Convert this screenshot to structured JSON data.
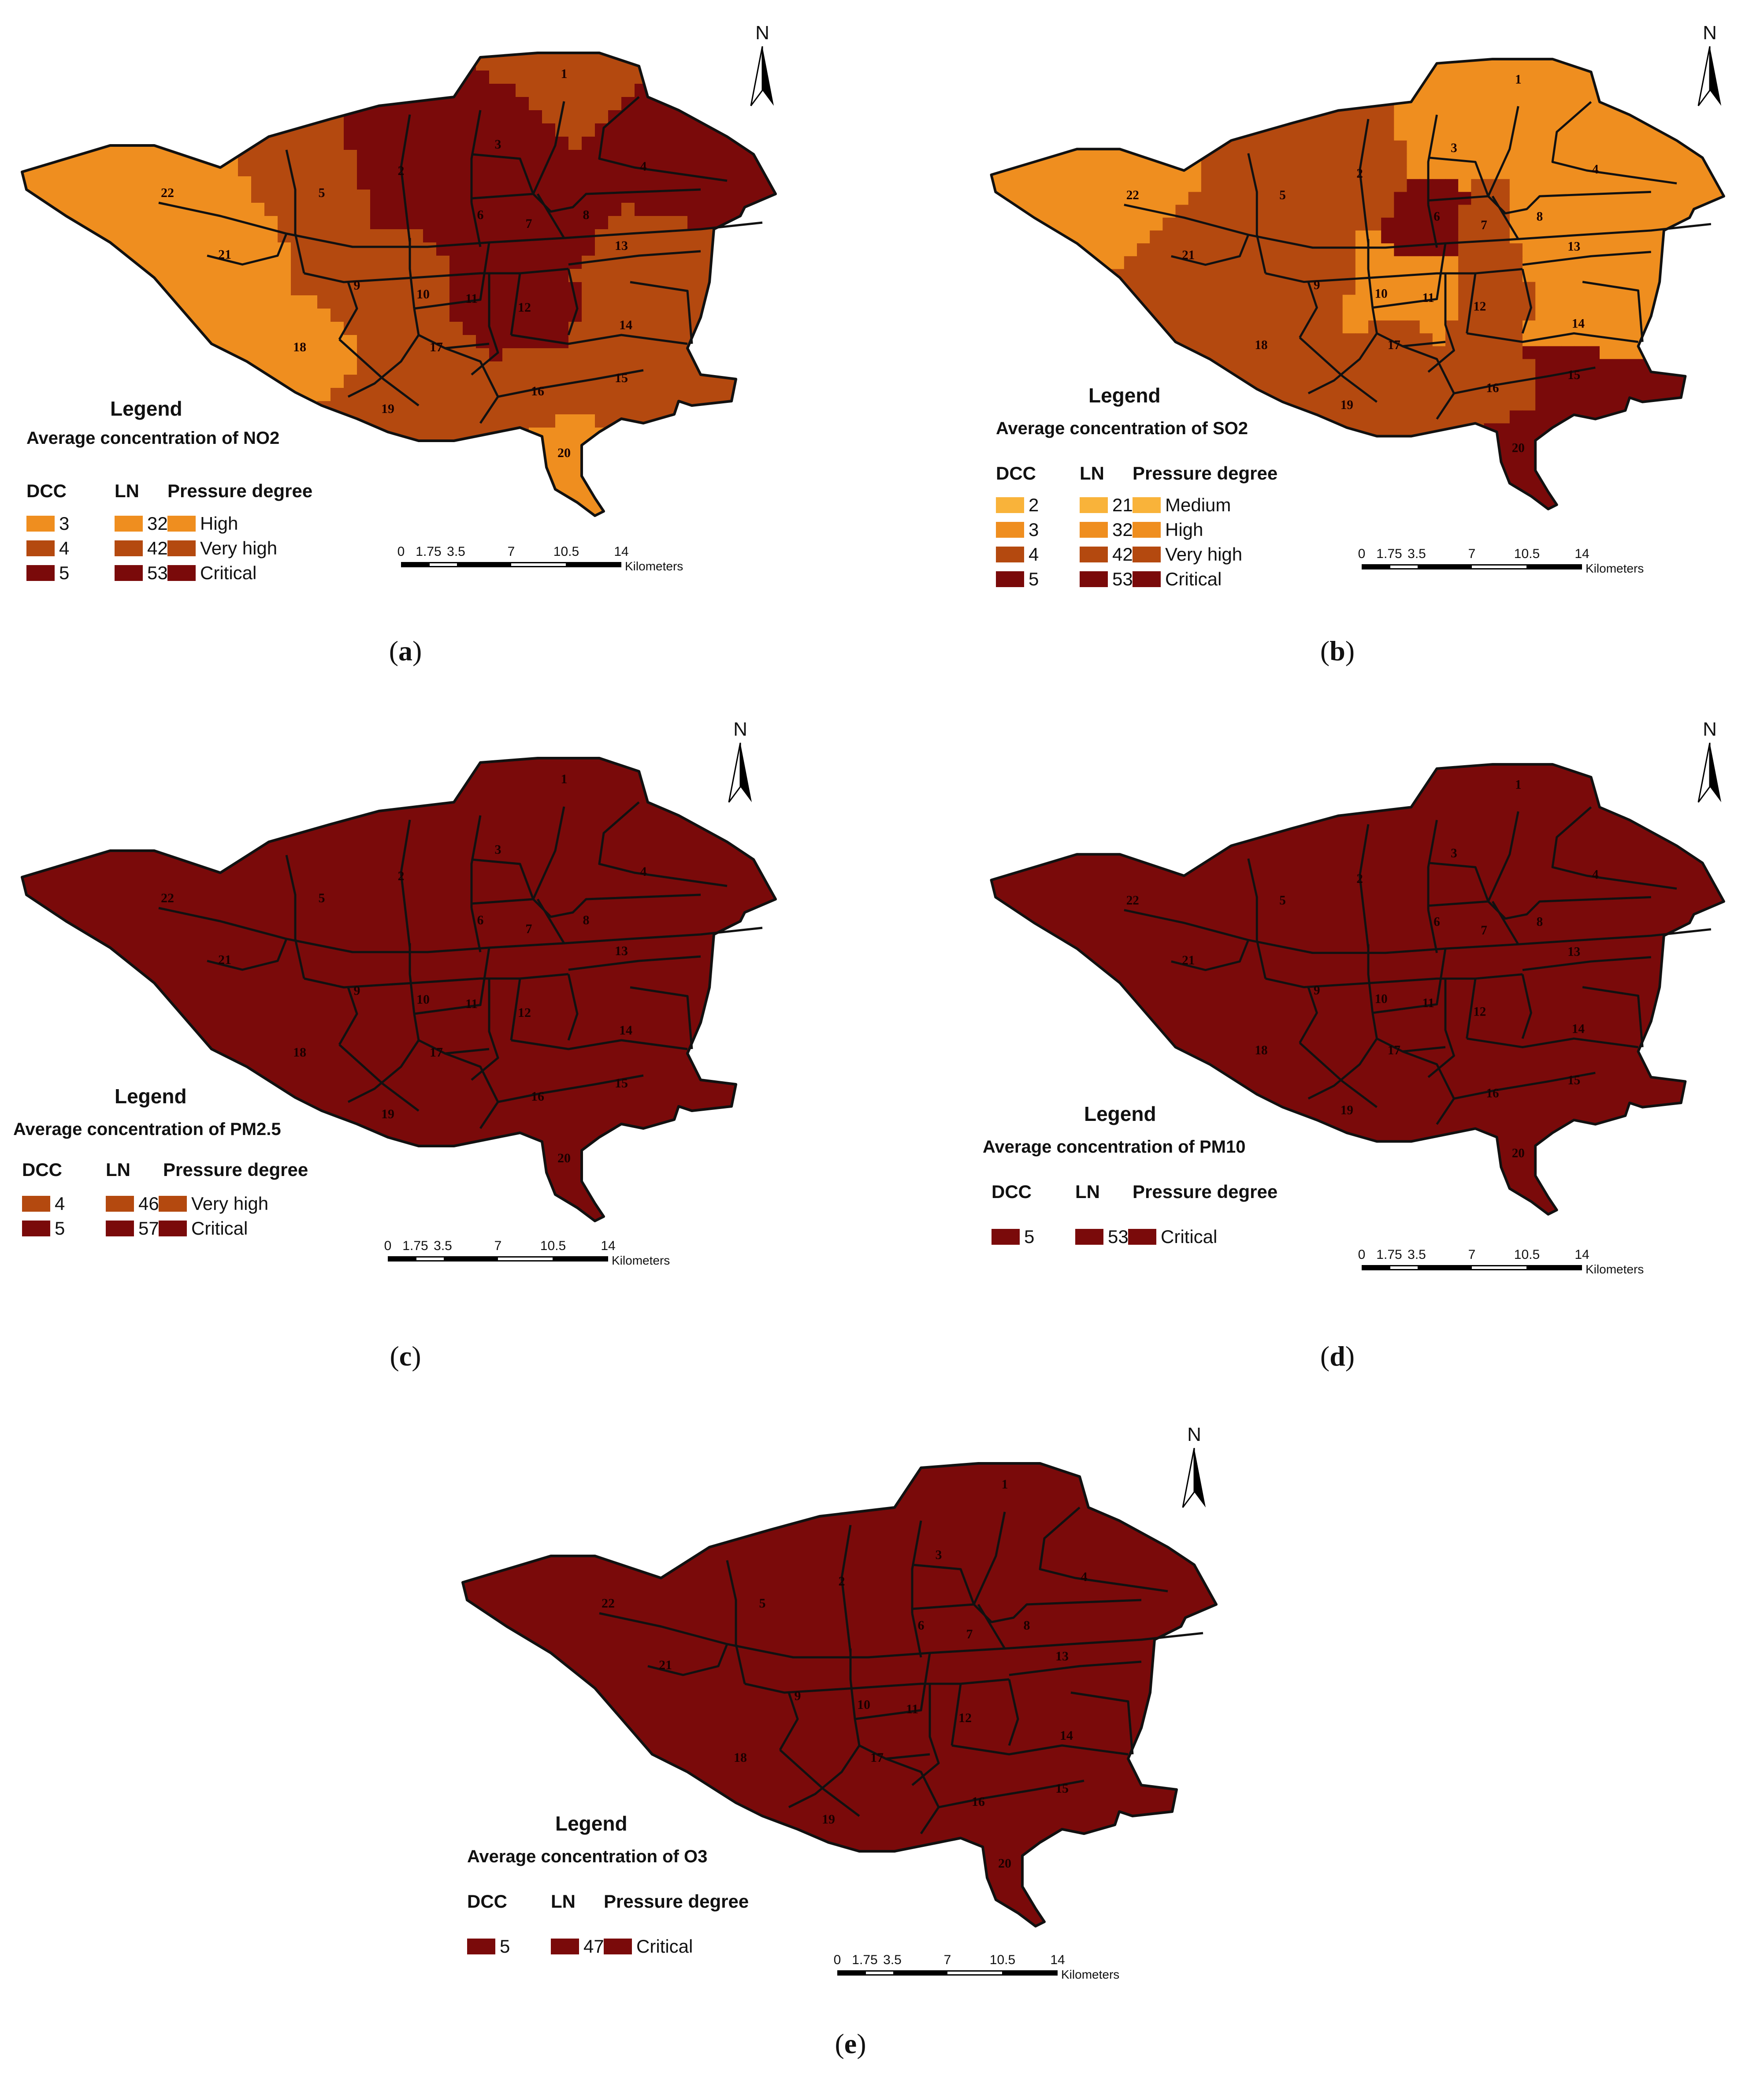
{
  "colors": {
    "medium": "#f9b33a",
    "high": "#ef8e1f",
    "very_high": "#b4490f",
    "critical": "#7a0a0a",
    "outline": "#111111"
  },
  "districts": [
    "1",
    "2",
    "3",
    "4",
    "5",
    "6",
    "7",
    "8",
    "9",
    "10",
    "11",
    "12",
    "13",
    "14",
    "15",
    "16",
    "17",
    "18",
    "19",
    "20",
    "21",
    "22"
  ],
  "panels": [
    {
      "caption": "a",
      "legend_title": "Legend",
      "legend_subtitle": "Average concentration of NO2",
      "col_dcc": "DCC",
      "col_ln": "LN",
      "col_pd": "Pressure degree",
      "legend_rows": [
        {
          "dcc": "3",
          "ln": "32.1",
          "degree": "High",
          "color": "#ef8e1f"
        },
        {
          "dcc": "4",
          "ln": "42.8",
          "degree": "Very high",
          "color": "#b4490f"
        },
        {
          "dcc": "5",
          "ln": "53.5",
          "degree": "Critical",
          "color": "#7a0a0a"
        }
      ],
      "district_levels": {
        "1": "very_high",
        "2": "critical",
        "3": "critical",
        "4": "critical",
        "5": "very_high",
        "6": "critical",
        "7": "critical",
        "8": "critical",
        "9": "very_high",
        "10": "very_high",
        "11": "critical",
        "12": "critical",
        "13": "very_high",
        "14": "very_high",
        "15": "very_high",
        "16": "very_high",
        "17": "very_high",
        "18": "high",
        "19": "very_high",
        "20": "high",
        "21": "high",
        "22": "high"
      }
    },
    {
      "caption": "b",
      "legend_title": "Legend",
      "legend_subtitle": "Average concentration of SO2",
      "col_dcc": "DCC",
      "col_ln": "LN",
      "col_pd": "Pressure degree",
      "legend_rows": [
        {
          "dcc": "2",
          "ln": "21.4",
          "degree": "Medium",
          "color": "#f9b33a"
        },
        {
          "dcc": "3",
          "ln": "32.1",
          "degree": "High",
          "color": "#ef8e1f"
        },
        {
          "dcc": "4",
          "ln": "42.8",
          "degree": "Very high",
          "color": "#b4490f"
        },
        {
          "dcc": "5",
          "ln": "53.5",
          "degree": "Critical",
          "color": "#7a0a0a"
        }
      ],
      "district_levels": {
        "1": "high",
        "2": "very_high",
        "3": "high",
        "4": "high",
        "5": "very_high",
        "6": "critical",
        "7": "very_high",
        "8": "high",
        "9": "very_high",
        "10": "high",
        "11": "high",
        "12": "very_high",
        "13": "high",
        "14": "high",
        "15": "critical",
        "16": "very_high",
        "17": "very_high",
        "18": "very_high",
        "19": "very_high",
        "20": "critical",
        "21": "very_high",
        "22": "high"
      }
    },
    {
      "caption": "c",
      "legend_title": "Legend",
      "legend_subtitle": "Average concentration of PM2.5",
      "col_dcc": "DCC",
      "col_ln": "LN",
      "col_pd": "Pressure degree",
      "legend_rows": [
        {
          "dcc": "4",
          "ln": "46",
          "degree": "Very high",
          "color": "#b4490f"
        },
        {
          "dcc": "5",
          "ln": "57.5",
          "degree": "Critical",
          "color": "#7a0a0a"
        }
      ],
      "district_levels": "critical"
    },
    {
      "caption": "d",
      "legend_title": "Legend",
      "legend_subtitle": "Average concentration of PM10",
      "col_dcc": "DCC",
      "col_ln": "LN",
      "col_pd": "Pressure degree",
      "legend_rows": [
        {
          "dcc": "5",
          "ln": "53.5",
          "degree": "Critical",
          "color": "#7a0a0a"
        }
      ],
      "district_levels": "critical"
    },
    {
      "caption": "e",
      "legend_title": "Legend",
      "legend_subtitle": "Average concentration of O3",
      "col_dcc": "DCC",
      "col_ln": "LN",
      "col_pd": "Pressure degree",
      "legend_rows": [
        {
          "dcc": "5",
          "ln": "47.5",
          "degree": "Critical",
          "color": "#7a0a0a"
        }
      ],
      "district_levels": "critical"
    }
  ],
  "scale": {
    "ticks": [
      "0",
      "1.75",
      "3.5",
      "7",
      "10.5",
      "14"
    ],
    "unit": "Kilometers"
  },
  "north_label": "N"
}
